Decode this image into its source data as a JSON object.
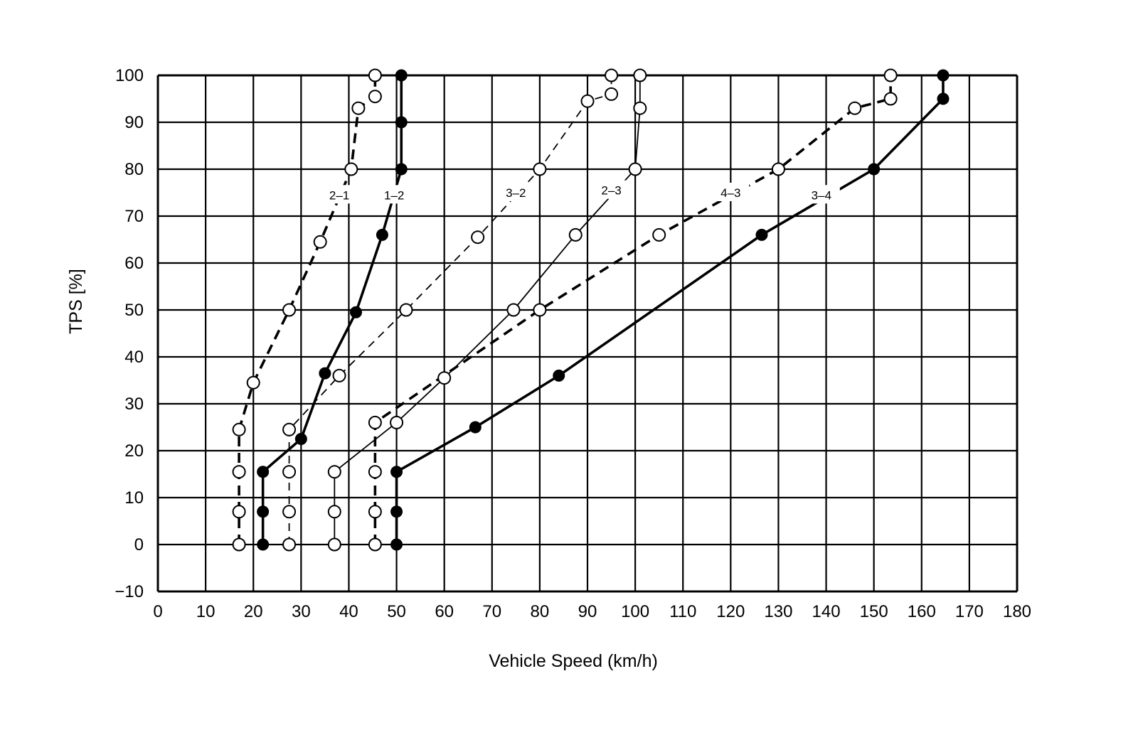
{
  "chart_data": {
    "type": "line",
    "xlabel": "Vehicle Speed (km/h)",
    "ylabel": "TPS [%]",
    "xlim": [
      0,
      180
    ],
    "ylim": [
      -10,
      100
    ],
    "x_ticks": [
      0,
      10,
      20,
      30,
      40,
      50,
      60,
      70,
      80,
      90,
      100,
      110,
      120,
      130,
      140,
      150,
      160,
      170,
      180
    ],
    "y_ticks": [
      -10,
      0,
      10,
      20,
      30,
      40,
      50,
      60,
      70,
      80,
      90,
      100
    ],
    "grid": true,
    "series": [
      {
        "name": "2–1",
        "line_style": "dashed-thick",
        "marker": "open",
        "points": [
          [
            17,
            0
          ],
          [
            17,
            7
          ],
          [
            17,
            15.5
          ],
          [
            17,
            24.5
          ],
          [
            20,
            34.5
          ],
          [
            27.5,
            50
          ],
          [
            34,
            64.5
          ],
          [
            40.5,
            80
          ],
          [
            42,
            93
          ],
          [
            45.5,
            95.5
          ],
          [
            45.5,
            100
          ]
        ]
      },
      {
        "name": "1–2",
        "line_style": "solid-thick",
        "marker": "filled",
        "points": [
          [
            22,
            0
          ],
          [
            22,
            7
          ],
          [
            22,
            15.5
          ],
          [
            30,
            22.5
          ],
          [
            35,
            36.5
          ],
          [
            41.5,
            49.5
          ],
          [
            47,
            66
          ],
          [
            51,
            80
          ],
          [
            51,
            90
          ],
          [
            51,
            100
          ]
        ]
      },
      {
        "name": "3–2",
        "line_style": "dashed-thin",
        "marker": "open",
        "points": [
          [
            27.5,
            0
          ],
          [
            27.5,
            7
          ],
          [
            27.5,
            15.5
          ],
          [
            27.5,
            24.5
          ],
          [
            38,
            36
          ],
          [
            52,
            50
          ],
          [
            67,
            65.5
          ],
          [
            80,
            80
          ],
          [
            90,
            94.5
          ],
          [
            95,
            96
          ],
          [
            95,
            100
          ]
        ]
      },
      {
        "name": "2–3",
        "line_style": "solid-thin",
        "marker": "open",
        "points": [
          [
            37,
            0
          ],
          [
            37,
            7
          ],
          [
            37,
            15.5
          ],
          [
            50,
            26
          ],
          [
            60,
            35.5
          ],
          [
            74.5,
            50
          ],
          [
            87.5,
            66
          ],
          [
            100,
            80
          ],
          [
            101,
            93
          ],
          [
            101,
            100
          ]
        ]
      },
      {
        "name": "4–3",
        "line_style": "dashed-thick",
        "marker": "open",
        "points": [
          [
            45.5,
            0
          ],
          [
            45.5,
            7
          ],
          [
            45.5,
            15.5
          ],
          [
            45.5,
            26
          ],
          [
            80,
            50
          ],
          [
            105,
            66
          ],
          [
            130,
            80
          ],
          [
            146,
            93
          ],
          [
            153.5,
            95
          ],
          [
            153.5,
            100
          ]
        ]
      },
      {
        "name": "3–4",
        "line_style": "solid-thick",
        "marker": "filled",
        "points": [
          [
            50,
            0
          ],
          [
            50,
            7
          ],
          [
            50,
            15.5
          ],
          [
            66.5,
            25
          ],
          [
            84,
            36
          ],
          [
            126.5,
            66
          ],
          [
            150,
            80
          ],
          [
            164.5,
            95
          ],
          [
            164.5,
            100
          ]
        ]
      }
    ]
  }
}
